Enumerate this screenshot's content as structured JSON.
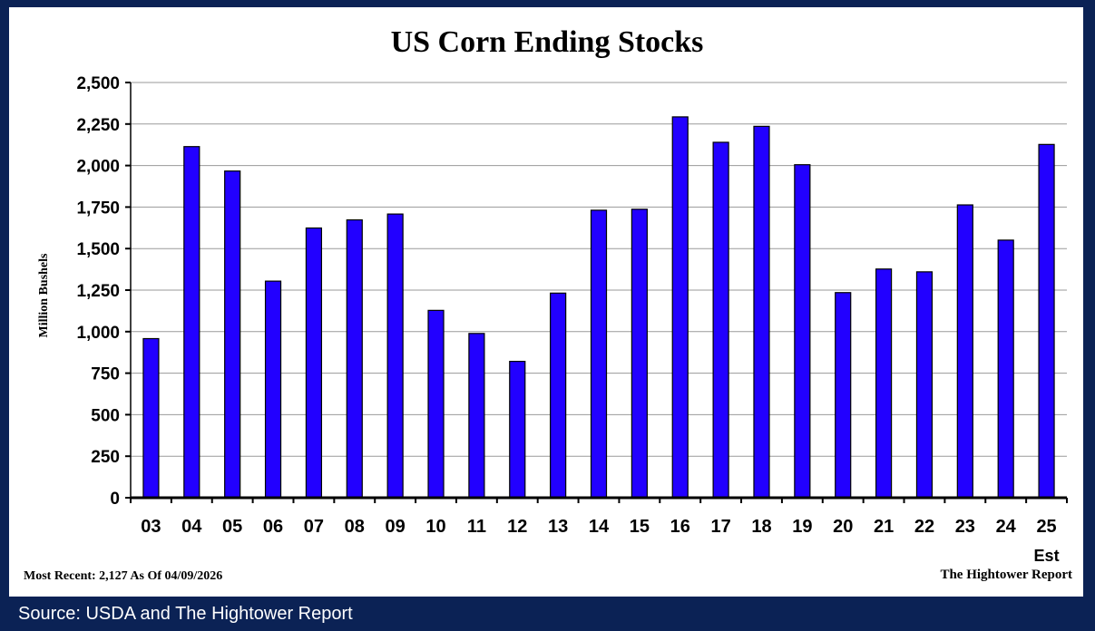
{
  "source_text": "Source:  USDA and The Hightower Report",
  "footer": {
    "most_recent": "Most Recent: 2,127 As Of 04/09/2026",
    "credit": "The Hightower Report"
  },
  "colors": {
    "background": "#0b2255",
    "panel": "#ffffff",
    "bar": "#2200ff",
    "grid": "#9a9a9a"
  },
  "chart_data": {
    "type": "bar",
    "title": "US Corn Ending Stocks",
    "xlabel": "",
    "ylabel": "Million Bushels",
    "ylim": [
      0,
      2500
    ],
    "yticks": [
      "0",
      "250",
      "500",
      "750",
      "1,000",
      "1,250",
      "1,500",
      "1,750",
      "2,000",
      "2,250",
      "2,500"
    ],
    "grid": true,
    "categories": [
      "03",
      "04",
      "05",
      "06",
      "07",
      "08",
      "09",
      "10",
      "11",
      "12",
      "13",
      "14",
      "15",
      "16",
      "17",
      "18",
      "19",
      "20",
      "21",
      "22",
      "23",
      "24",
      "25"
    ],
    "category_sublabels": {
      "25": "Est"
    },
    "values": [
      958,
      2114,
      1967,
      1304,
      1624,
      1673,
      1708,
      1128,
      989,
      821,
      1232,
      1731,
      1737,
      2293,
      2140,
      2236,
      2005,
      1235,
      1377,
      1360,
      1763,
      1551,
      2127
    ]
  }
}
